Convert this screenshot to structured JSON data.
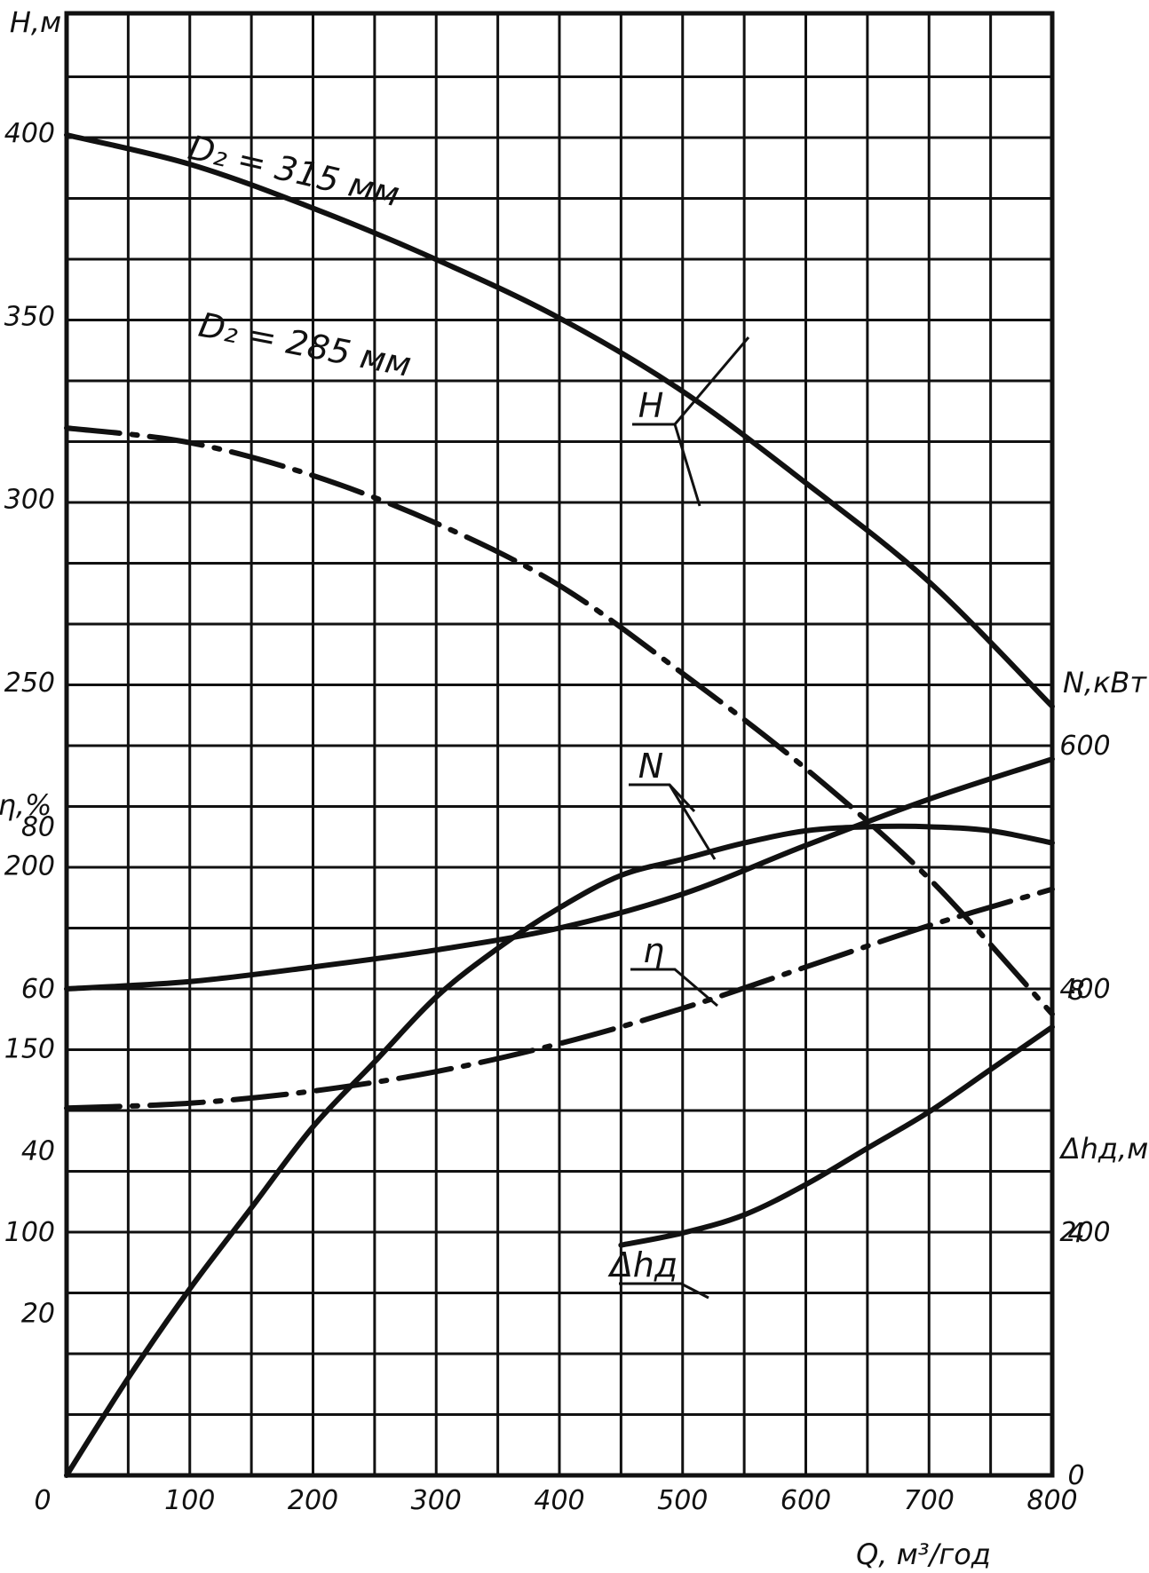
{
  "chart_data": {
    "type": "line",
    "x_axis": {
      "label": "Q, м³/год",
      "range": [
        0,
        800
      ],
      "ticks": [
        100,
        200,
        300,
        400,
        500,
        600,
        700,
        800
      ],
      "tick_labels": [
        "100",
        "200",
        "300",
        "400",
        "500",
        "600",
        "700",
        "800"
      ],
      "origin_label": "0"
    },
    "axes": {
      "H": {
        "label": "H,м",
        "range": [
          100,
          450
        ],
        "ticks": [
          100,
          150,
          200,
          250,
          300,
          350,
          400
        ],
        "tick_labels": [
          "100",
          "150",
          "200",
          "250",
          "300",
          "350",
          "400"
        ],
        "side": "left"
      },
      "eta": {
        "label": "η,%",
        "range": [
          0,
          100
        ],
        "ticks": [
          20,
          40,
          60,
          80
        ],
        "tick_labels": [
          "20",
          "40",
          "60",
          "80"
        ],
        "side": "left"
      },
      "N": {
        "label": "N,кВт",
        "range": [
          0,
          700
        ],
        "ticks": [
          200,
          400,
          600
        ],
        "tick_labels": [
          "200",
          "400",
          "600"
        ],
        "side": "right"
      },
      "dh": {
        "label": "Δhд,м",
        "range": [
          0,
          10
        ],
        "ticks": [
          0,
          4,
          8
        ],
        "tick_labels": [
          "0",
          "4",
          "8"
        ],
        "side": "right"
      }
    },
    "grid": true,
    "series": [
      {
        "name": "D₂ = 315 мм",
        "axis": "H",
        "style": "solid",
        "x": [
          0,
          100,
          200,
          300,
          400,
          500,
          600,
          700,
          800
        ],
        "y": [
          400,
          392,
          380,
          366,
          350,
          330,
          305,
          278,
          244
        ]
      },
      {
        "name": "D₂ = 285 мм",
        "axis": "H",
        "style": "dashdot",
        "x": [
          0,
          100,
          200,
          300,
          400,
          500,
          600,
          700,
          800
        ],
        "y": [
          320,
          316,
          307,
          294,
          277,
          253,
          227,
          197,
          160
        ]
      },
      {
        "axis": "N",
        "style": "solid",
        "x": [
          0,
          100,
          200,
          300,
          400,
          500,
          600,
          700,
          800
        ],
        "y": [
          400,
          406,
          418,
          432,
          450,
          478,
          518,
          556,
          589
        ]
      },
      {
        "axis": "N",
        "style": "dashdot",
        "x": [
          0,
          100,
          200,
          300,
          400,
          500,
          600,
          700,
          800
        ],
        "y": [
          302,
          306,
          316,
          332,
          355,
          384,
          418,
          452,
          482
        ]
      },
      {
        "axis": "eta",
        "style": "solid",
        "x": [
          0,
          50,
          100,
          150,
          200,
          250,
          300,
          350,
          400,
          450,
          500,
          550,
          600,
          650,
          700,
          750,
          800
        ],
        "y": [
          0,
          12,
          23,
          33,
          43,
          51,
          59,
          65,
          70,
          74,
          76,
          78,
          79.5,
          80,
          80,
          79.5,
          78
        ]
      },
      {
        "axis": "dh",
        "style": "solid",
        "x": [
          450,
          500,
          550,
          600,
          650,
          700,
          750,
          800
        ],
        "y": [
          3.8,
          4.0,
          4.3,
          4.8,
          5.4,
          6.0,
          6.7,
          7.4
        ]
      }
    ],
    "annotations": [
      {
        "text": "D₂ = 315 мм"
      },
      {
        "text": "D₂ = 285 мм"
      },
      {
        "text": "H"
      },
      {
        "text": "N"
      },
      {
        "text": "η"
      },
      {
        "text": "Δhд"
      }
    ]
  }
}
